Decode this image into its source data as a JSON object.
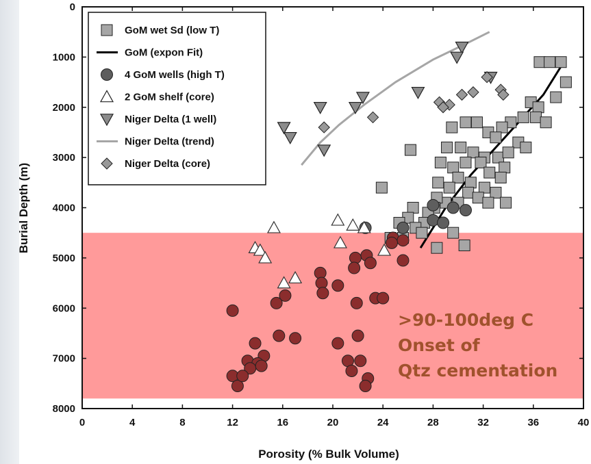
{
  "chart_data": {
    "type": "scatter",
    "title": "",
    "xlabel": "Porosity (% Bulk Volume)",
    "ylabel": "Burial Depth (m)",
    "xlim": [
      0,
      40
    ],
    "ylim": [
      8000,
      0
    ],
    "x_ticks": [
      "0",
      "4",
      "8",
      "12",
      "16",
      "20",
      "24",
      "28",
      "32",
      "36",
      "40"
    ],
    "y_ticks": [
      "0",
      "1000",
      "2000",
      "3000",
      "4000",
      "5000",
      "6000",
      "7000",
      "8000"
    ],
    "grid": false,
    "legend_position": "top-left",
    "highlight_band": {
      "y_from": 4500,
      "y_to": 7800,
      "color": "#ff9a9a",
      "annotation": [
        ">90-100deg C",
        "Onset of",
        "Qtz cementation"
      ],
      "annotation_color": "#a0522d"
    },
    "series": [
      {
        "name": "GoM wet Sd (low T)",
        "marker": "square",
        "color": "#a6a6a6",
        "points": [
          [
            36.5,
            1100
          ],
          [
            37.3,
            1100
          ],
          [
            38.2,
            1100
          ],
          [
            38.6,
            1500
          ],
          [
            37.8,
            1800
          ],
          [
            35.8,
            1900
          ],
          [
            36.4,
            2000
          ],
          [
            35.2,
            2200
          ],
          [
            36.2,
            2200
          ],
          [
            37.0,
            2300
          ],
          [
            34.2,
            2300
          ],
          [
            33.5,
            2400
          ],
          [
            32.4,
            2500
          ],
          [
            31.5,
            2300
          ],
          [
            30.6,
            2300
          ],
          [
            29.5,
            2400
          ],
          [
            33.0,
            2600
          ],
          [
            34.8,
            2700
          ],
          [
            35.4,
            2800
          ],
          [
            29.1,
            2800
          ],
          [
            30.2,
            2800
          ],
          [
            31.2,
            2900
          ],
          [
            32.1,
            3000
          ],
          [
            33.2,
            3000
          ],
          [
            34.0,
            2900
          ],
          [
            30.6,
            3100
          ],
          [
            31.8,
            3100
          ],
          [
            33.7,
            3200
          ],
          [
            29.6,
            3200
          ],
          [
            28.6,
            3100
          ],
          [
            32.5,
            3300
          ],
          [
            33.4,
            3400
          ],
          [
            30.0,
            3400
          ],
          [
            31.0,
            3500
          ],
          [
            32.1,
            3600
          ],
          [
            33.0,
            3700
          ],
          [
            28.4,
            3500
          ],
          [
            29.3,
            3600
          ],
          [
            30.8,
            3700
          ],
          [
            31.6,
            3800
          ],
          [
            32.4,
            3900
          ],
          [
            33.8,
            3900
          ],
          [
            29.0,
            3900
          ],
          [
            30.0,
            3900
          ],
          [
            28.3,
            3800
          ],
          [
            28.1,
            4000
          ],
          [
            27.6,
            4100
          ],
          [
            27.3,
            4300
          ],
          [
            26.4,
            4000
          ],
          [
            26.0,
            4200
          ],
          [
            25.3,
            4300
          ],
          [
            26.6,
            4400
          ],
          [
            27.1,
            4500
          ],
          [
            25.6,
            4600
          ],
          [
            24.6,
            4600
          ],
          [
            23.9,
            3600
          ],
          [
            26.2,
            2850
          ],
          [
            28.3,
            4800
          ],
          [
            30.5,
            4750
          ],
          [
            29.6,
            4500
          ]
        ]
      },
      {
        "name": "GoM (expon Fit)",
        "marker": "line",
        "color": "#000000",
        "points": [
          [
            27.0,
            4800
          ],
          [
            29.0,
            4000
          ],
          [
            31.0,
            3350
          ],
          [
            33.0,
            2800
          ],
          [
            35.0,
            2250
          ],
          [
            36.8,
            1750
          ],
          [
            38.3,
            1150
          ]
        ]
      },
      {
        "name": "4 GoM wells (high T)",
        "marker": "circle",
        "color": "#5e5e5e",
        "points": [
          [
            28.0,
            3950
          ],
          [
            29.6,
            4000
          ],
          [
            30.6,
            4050
          ],
          [
            28.0,
            4250
          ],
          [
            28.8,
            4300
          ],
          [
            25.6,
            4400
          ],
          [
            22.6,
            4400
          ]
        ]
      },
      {
        "name": "2 GoM shelf (core)",
        "marker": "triangle-up",
        "color": "#ffffff",
        "points": [
          [
            15.3,
            4400
          ],
          [
            20.4,
            4250
          ],
          [
            21.6,
            4350
          ],
          [
            22.5,
            4400
          ],
          [
            20.6,
            4700
          ],
          [
            13.8,
            4800
          ],
          [
            14.2,
            4850
          ],
          [
            14.6,
            5000
          ],
          [
            17.0,
            5400
          ],
          [
            16.1,
            5500
          ],
          [
            24.1,
            4850
          ]
        ]
      },
      {
        "name": "Niger Delta (1 well)",
        "marker": "triangle-down",
        "color": "#8c8c8c",
        "points": [
          [
            30.3,
            800
          ],
          [
            29.9,
            1000
          ],
          [
            32.6,
            1400
          ],
          [
            26.8,
            1700
          ],
          [
            22.4,
            1800
          ],
          [
            21.8,
            2000
          ],
          [
            19.0,
            2000
          ],
          [
            16.1,
            2400
          ],
          [
            16.6,
            2600
          ],
          [
            19.3,
            2850
          ]
        ]
      },
      {
        "name": "Niger Delta (trend)",
        "marker": "line",
        "color": "#a6a6a6",
        "points": [
          [
            17.5,
            3150
          ],
          [
            19.0,
            2700
          ],
          [
            20.5,
            2350
          ],
          [
            22.5,
            1950
          ],
          [
            25.0,
            1500
          ],
          [
            28.0,
            1050
          ],
          [
            30.5,
            750
          ],
          [
            32.5,
            500
          ]
        ]
      },
      {
        "name": "Niger Delta (core)",
        "marker": "diamond",
        "color": "#999999",
        "points": [
          [
            32.3,
            1400
          ],
          [
            33.4,
            1650
          ],
          [
            33.6,
            1750
          ],
          [
            31.2,
            1700
          ],
          [
            30.3,
            1750
          ],
          [
            28.5,
            1900
          ],
          [
            29.3,
            1950
          ],
          [
            28.8,
            2000
          ],
          [
            23.2,
            2200
          ],
          [
            19.3,
            2400
          ]
        ]
      },
      {
        "name": "",
        "marker": "circle",
        "color": "#8b2d2d",
        "points": [
          [
            24.8,
            4600
          ],
          [
            25.6,
            4650
          ],
          [
            24.7,
            4700
          ],
          [
            25.6,
            5050
          ],
          [
            22.7,
            4950
          ],
          [
            23.0,
            5100
          ],
          [
            21.8,
            5000
          ],
          [
            21.7,
            5200
          ],
          [
            19.0,
            5300
          ],
          [
            19.1,
            5500
          ],
          [
            19.2,
            5700
          ],
          [
            20.4,
            5550
          ],
          [
            16.2,
            5750
          ],
          [
            15.5,
            5900
          ],
          [
            12.0,
            6050
          ],
          [
            21.9,
            5900
          ],
          [
            23.4,
            5800
          ],
          [
            24.0,
            5800
          ],
          [
            15.7,
            6550
          ],
          [
            17.0,
            6600
          ],
          [
            20.4,
            6700
          ],
          [
            22.0,
            6550
          ],
          [
            13.8,
            6700
          ],
          [
            14.5,
            6950
          ],
          [
            13.2,
            7050
          ],
          [
            14.0,
            7100
          ],
          [
            13.4,
            7200
          ],
          [
            12.0,
            7350
          ],
          [
            12.4,
            7550
          ],
          [
            12.8,
            7350
          ],
          [
            14.3,
            7150
          ],
          [
            21.2,
            7050
          ],
          [
            21.5,
            7250
          ],
          [
            22.2,
            7050
          ],
          [
            22.8,
            7400
          ],
          [
            22.6,
            7550
          ]
        ]
      }
    ]
  }
}
